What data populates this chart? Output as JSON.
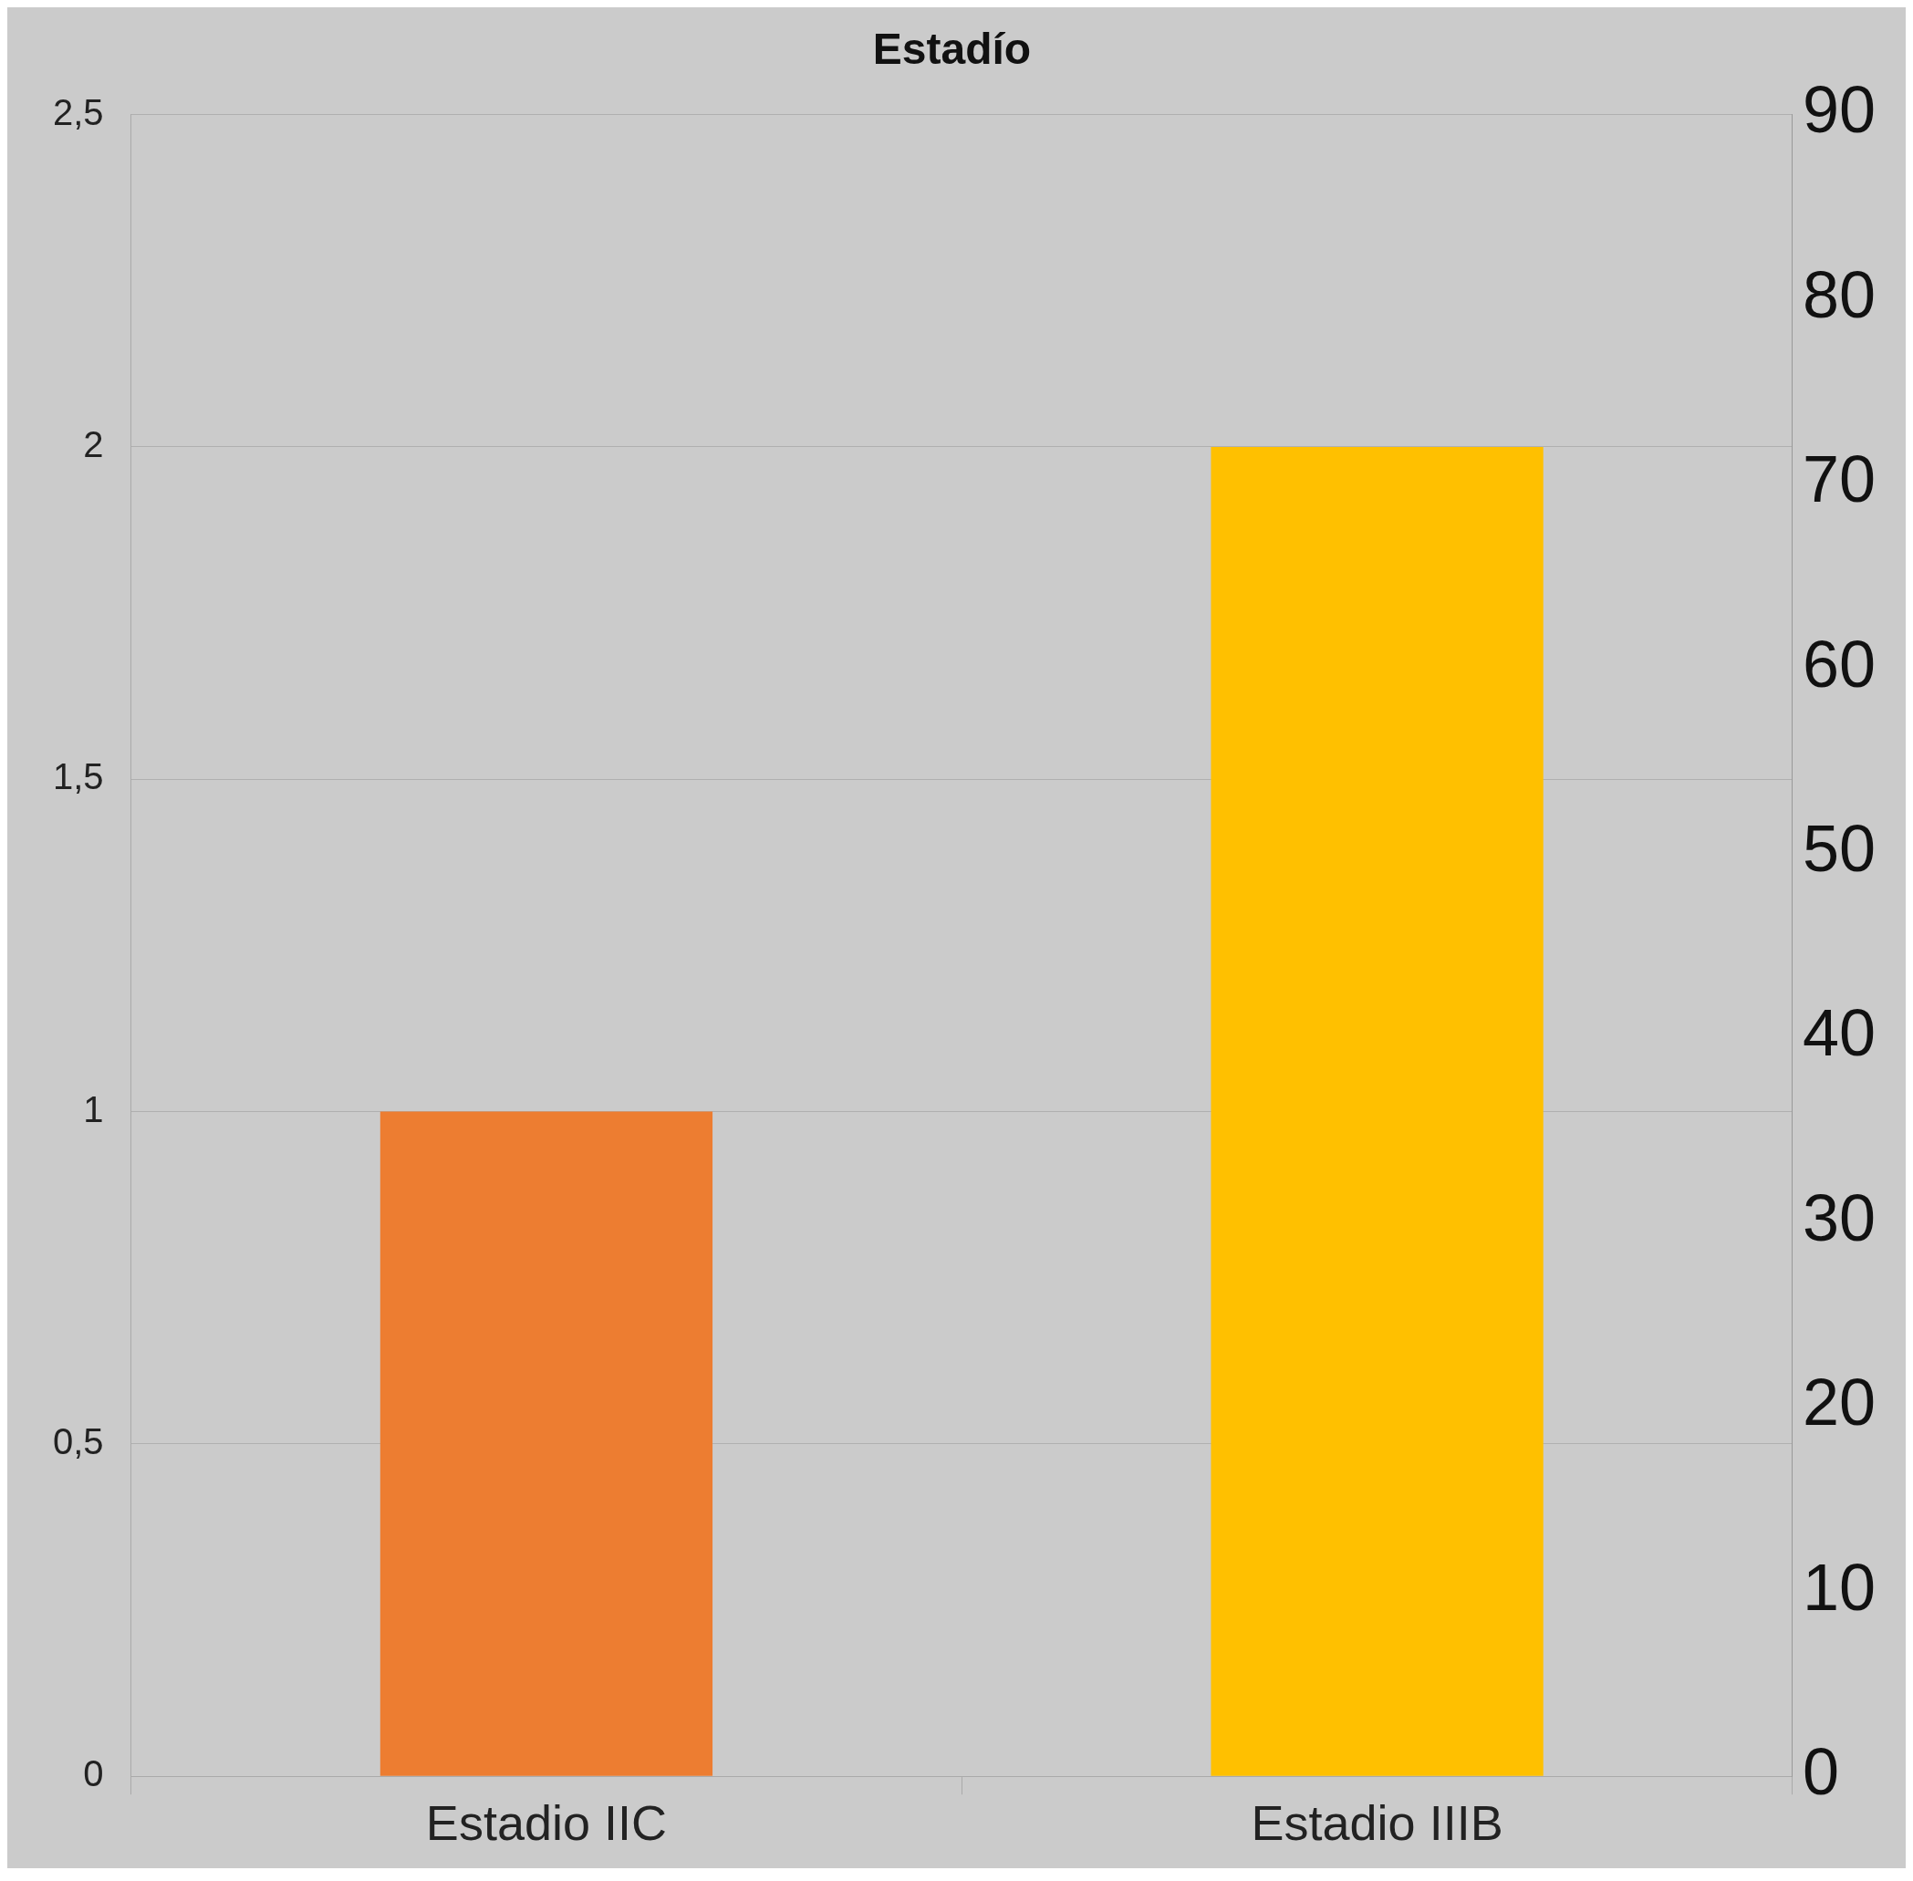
{
  "chart_data": {
    "type": "bar",
    "title": "Estadío",
    "categories": [
      "Estadio IIC",
      "Estadio IIIB"
    ],
    "values": [
      1,
      2
    ],
    "colors": [
      "#ed7d31",
      "#ffc000"
    ],
    "ylim": [
      0,
      2.5
    ],
    "yticks": [
      0,
      {
        "value": 0.5,
        "label": "0,5"
      },
      1,
      {
        "value": 1.5,
        "label": "1,5"
      },
      2,
      {
        "value": 2.5,
        "label": "2,5"
      }
    ],
    "y2lim": [
      0,
      90
    ],
    "y2ticks": [
      0,
      10,
      20,
      30,
      40,
      50,
      60,
      70,
      80,
      90
    ],
    "grid": "y",
    "legend": false
  }
}
